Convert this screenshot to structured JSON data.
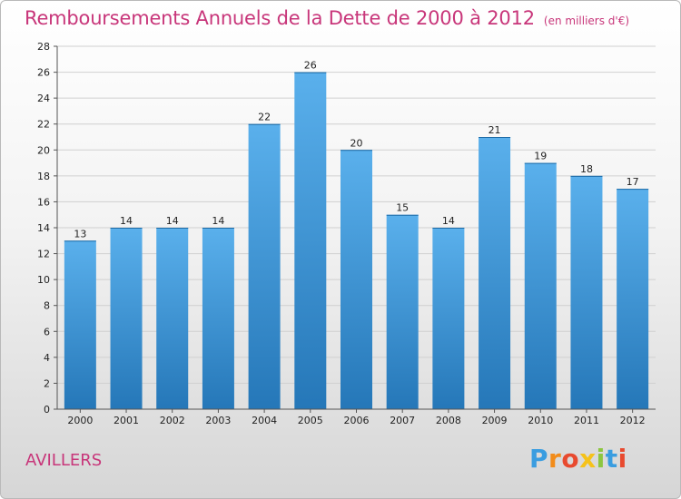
{
  "header": {
    "title": "Remboursements Annuels de la Dette de 2000 à 2012",
    "unit": "(en milliers d'€)"
  },
  "commune": "AVILLERS",
  "logo": {
    "letters": [
      "P",
      "r",
      "o",
      "x",
      "i",
      "t",
      "i"
    ],
    "colors": [
      "#3a9de0",
      "#f28c1a",
      "#e84a2f",
      "#f5c21a",
      "#8cc63f",
      "#3a9de0",
      "#e84a2f"
    ]
  },
  "colors": {
    "bar_top": "#5ab0ec",
    "bar_bottom": "#2577b8",
    "title": "#c8367a"
  },
  "chart_data": {
    "type": "bar",
    "categories": [
      "2000",
      "2001",
      "2002",
      "2003",
      "2004",
      "2005",
      "2006",
      "2007",
      "2008",
      "2009",
      "2010",
      "2011",
      "2012"
    ],
    "values": [
      13,
      14,
      14,
      14,
      22,
      26,
      20,
      15,
      14,
      21,
      19,
      18,
      17
    ],
    "ylim": [
      0,
      28
    ],
    "yticks": [
      0,
      2,
      4,
      6,
      8,
      10,
      12,
      14,
      16,
      18,
      20,
      22,
      24,
      26,
      28
    ],
    "grid": true,
    "data_labels": true
  }
}
